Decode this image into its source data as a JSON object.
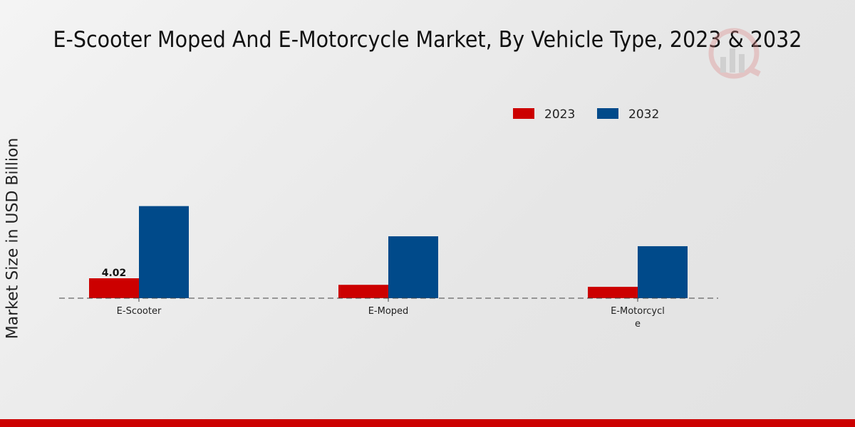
{
  "chart_data": {
    "type": "bar",
    "title": "E-Scooter Moped And E-Motorcycle Market, By Vehicle Type, 2023 & 2032",
    "xlabel": "",
    "ylabel": "Market Size in USD Billion",
    "categories": [
      "E-Scooter",
      "E-Moped",
      "E-Motorcycl\ne"
    ],
    "series": [
      {
        "name": "2023",
        "color": "#cc0000",
        "values": [
          4.02,
          2.7,
          2.3
        ]
      },
      {
        "name": "2032",
        "color": "#004a8a",
        "values": [
          18.6,
          12.5,
          10.5
        ]
      }
    ],
    "data_labels": [
      {
        "series": 0,
        "index": 0,
        "text": "4.02"
      }
    ],
    "ylim": [
      0,
      23
    ],
    "grid": false,
    "legend_position": "top-right"
  }
}
